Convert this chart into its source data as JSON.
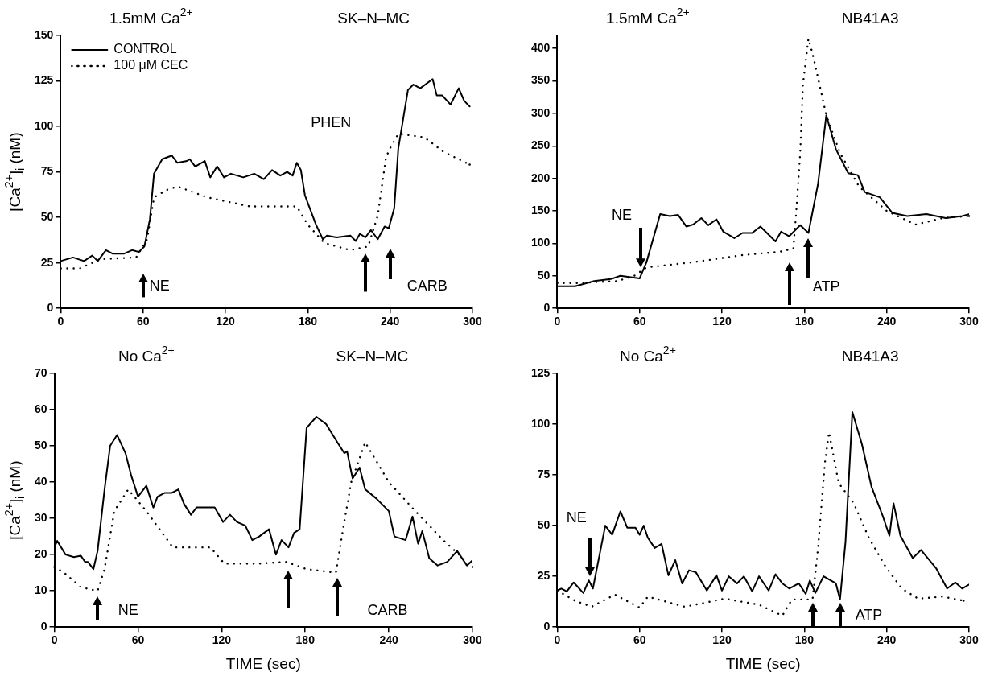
{
  "chart_data": [
    {
      "type": "line",
      "ylabel": "[Ca$^{2+}$]$_{i}$ (nM)",
      "xlim": [
        0,
        300
      ],
      "xticks": [
        0,
        60,
        120,
        180,
        240,
        300
      ],
      "ylim": [
        0,
        150
      ],
      "yticks": [
        0,
        25,
        50,
        75,
        100,
        125,
        150
      ],
      "grid": false,
      "legend": "top left",
      "annotations": [
        "1.5mM Ca$^{2+}$",
        "SK–N–MC",
        "NE",
        "PHEN",
        "CARB"
      ],
      "series": [
        {
          "name": "CONTROL",
          "color": "#000000",
          "line_style": "solid",
          "x": [
            0,
            9,
            17,
            23,
            27,
            33,
            38,
            46,
            52,
            57,
            61,
            65,
            68,
            74,
            81,
            85,
            92,
            94,
            98,
            105,
            109,
            114,
            119,
            124,
            133,
            141,
            148,
            154,
            160,
            165,
            169,
            172,
            175,
            178,
            186,
            191,
            194,
            201,
            211,
            215,
            218,
            222,
            226,
            231,
            236,
            239,
            243,
            246,
            253,
            257,
            262,
            271,
            274,
            278,
            284,
            290,
            294,
            298
          ],
          "values": [
            26,
            28,
            26,
            29,
            26,
            32,
            30,
            30,
            32,
            31,
            34,
            49,
            74,
            82,
            84,
            80,
            81,
            82,
            78,
            81,
            72,
            78,
            72,
            74,
            72,
            74,
            71,
            76,
            73,
            75,
            73,
            80,
            76,
            62,
            46,
            38,
            40,
            39,
            40,
            37,
            41,
            39,
            43,
            38,
            45,
            44,
            55,
            88,
            120,
            123,
            121,
            126,
            117,
            117,
            112,
            121,
            114,
            111
          ]
        },
        {
          "name": "100 μM CEC",
          "color": "#000000",
          "line_style": "dotted",
          "x": [
            0,
            14,
            29,
            55,
            63,
            68,
            77,
            85,
            107,
            138,
            172,
            180,
            192,
            211,
            224,
            231,
            237,
            240,
            246,
            265,
            279,
            298
          ],
          "values": [
            22,
            22,
            27,
            28,
            38,
            61,
            65,
            67,
            61,
            56,
            56,
            46,
            36,
            32,
            34,
            51,
            83,
            88,
            96,
            94,
            86,
            79
          ]
        }
      ]
    },
    {
      "type": "line",
      "xlim": [
        0,
        300
      ],
      "xticks": [
        0,
        60,
        120,
        180,
        240,
        300
      ],
      "ylim": [
        0,
        420
      ],
      "yticks": [
        0,
        50,
        100,
        150,
        200,
        250,
        300,
        350,
        400
      ],
      "grid": false,
      "annotations": [
        "1.5mM Ca$^{2+}$",
        "NB41A3",
        "NE",
        "ATP"
      ],
      "series": [
        {
          "color": "#000000",
          "line_style": "solid",
          "x": [
            0,
            13,
            27,
            39,
            46,
            60,
            65,
            75,
            82,
            88,
            94,
            99,
            105,
            110,
            116,
            121,
            129,
            135,
            142,
            148,
            159,
            163,
            169,
            177,
            183,
            190,
            196,
            203,
            212,
            219,
            224,
            235,
            244,
            255,
            269,
            283,
            295,
            300
          ],
          "values": [
            34,
            34,
            42,
            45,
            50,
            46,
            71,
            145,
            142,
            144,
            126,
            129,
            139,
            128,
            137,
            118,
            108,
            116,
            116,
            126,
            103,
            118,
            111,
            128,
            116,
            192,
            297,
            245,
            208,
            205,
            179,
            171,
            147,
            142,
            145,
            139,
            142,
            145
          ]
        },
        {
          "color": "#000000",
          "line_style": "dotted",
          "x": [
            0,
            17,
            44,
            56,
            65,
            99,
            135,
            162,
            172,
            174,
            177,
            179,
            183,
            186,
            191,
            196,
            206,
            220,
            240,
            261,
            281,
            300
          ],
          "values": [
            39,
            39,
            42,
            50,
            63,
            71,
            82,
            87,
            92,
            145,
            239,
            345,
            415,
            392,
            345,
            297,
            239,
            187,
            150,
            129,
            139,
            142
          ]
        }
      ]
    },
    {
      "type": "line",
      "xlabel": "TIME (sec)",
      "ylabel": "[Ca$^{2+}$]$_{i}$ (nM)",
      "xlim": [
        0,
        300
      ],
      "xticks": [
        0,
        60,
        120,
        180,
        240,
        300
      ],
      "ylim": [
        0,
        70
      ],
      "yticks": [
        0,
        10,
        20,
        30,
        40,
        50,
        60,
        70
      ],
      "grid": false,
      "annotations": [
        "No Ca$^{2+}$",
        "SK–N–MC",
        "NE",
        "CARB"
      ],
      "series": [
        {
          "color": "#000000",
          "line_style": "solid",
          "x": [
            0,
            2,
            8,
            14,
            19,
            22,
            24,
            28,
            31,
            36,
            40,
            45,
            51,
            55,
            60,
            66,
            71,
            74,
            79,
            84,
            89,
            93,
            98,
            102,
            107,
            115,
            121,
            126,
            131,
            137,
            142,
            147,
            154,
            159,
            163,
            168,
            172,
            176,
            181,
            188,
            195,
            203,
            208,
            210,
            214,
            219,
            223,
            231,
            240,
            244,
            252,
            257,
            261,
            264,
            269,
            275,
            282,
            289,
            296,
            300
          ],
          "values": [
            22,
            23.8,
            20,
            19.3,
            19.7,
            18,
            18,
            16,
            21,
            38,
            50,
            53,
            48,
            42,
            36,
            39,
            33,
            36,
            37,
            37,
            38,
            34,
            31,
            33,
            33,
            33,
            29,
            31,
            29,
            28,
            24,
            25,
            27,
            20,
            24,
            22,
            26,
            27,
            55,
            58,
            56,
            51,
            48,
            48.5,
            41,
            44,
            38,
            35.5,
            32,
            25,
            24,
            30.5,
            23,
            26.5,
            19,
            17,
            18,
            21,
            17,
            18.4
          ]
        },
        {
          "color": "#000000",
          "line_style": "dotted",
          "x": [
            0,
            7,
            19,
            31,
            36,
            43,
            53,
            66,
            85,
            112,
            122,
            147,
            166,
            181,
            202,
            208,
            213,
            223,
            240,
            259,
            279,
            300
          ],
          "values": [
            16.6,
            15,
            11,
            10,
            16,
            32,
            38,
            32,
            22,
            22,
            17.5,
            17.5,
            18,
            16,
            15,
            29,
            40,
            51,
            40,
            32,
            24,
            16.6
          ]
        }
      ]
    },
    {
      "type": "line",
      "xlabel": "TIME (sec)",
      "xlim": [
        0,
        300
      ],
      "xticks": [
        0,
        60,
        120,
        180,
        240,
        300
      ],
      "ylim": [
        0,
        125
      ],
      "yticks": [
        0,
        25,
        50,
        75,
        100,
        125
      ],
      "grid": false,
      "annotations": [
        "No Ca$^{2+}$",
        "NB41A3",
        "NE",
        "ATP"
      ],
      "series": [
        {
          "color": "#000000",
          "line_style": "solid",
          "x": [
            0,
            3,
            7,
            12,
            19,
            23,
            26,
            35,
            40,
            46,
            51,
            57,
            60,
            63,
            66,
            71,
            76,
            81,
            86,
            91,
            96,
            101,
            109,
            116,
            120,
            125,
            131,
            136,
            142,
            147,
            154,
            159,
            164,
            169,
            176,
            181,
            184,
            188,
            194,
            203,
            206,
            210,
            215,
            222,
            229,
            237,
            242,
            245,
            250,
            259,
            265,
            276,
            284,
            290,
            295,
            300
          ],
          "values": [
            18,
            19,
            17.6,
            22,
            16.8,
            23,
            19,
            50,
            45.5,
            57,
            49,
            49,
            45.5,
            50,
            44,
            39,
            41,
            25.5,
            33,
            21.5,
            28,
            27,
            18,
            25.5,
            18,
            25,
            21.5,
            25,
            17.6,
            25,
            18,
            26,
            21.5,
            19,
            21.5,
            16.4,
            23,
            16.8,
            25,
            21.5,
            13.6,
            42,
            106,
            90,
            69,
            55,
            45,
            61,
            45,
            34,
            38,
            29,
            19,
            22,
            19,
            21
          ]
        },
        {
          "color": "#000000",
          "line_style": "dotted",
          "x": [
            0,
            13,
            25,
            42,
            60,
            66,
            93,
            122,
            147,
            164,
            171,
            186,
            190,
            195,
            198,
            205,
            216,
            227,
            239,
            251,
            263,
            281,
            296
          ],
          "values": [
            18,
            13,
            10,
            16,
            9.6,
            15,
            10,
            14,
            11,
            5.6,
            13.6,
            13.6,
            39,
            81,
            96,
            71,
            61,
            44,
            30,
            19,
            14,
            15,
            13
          ]
        }
      ]
    }
  ]
}
